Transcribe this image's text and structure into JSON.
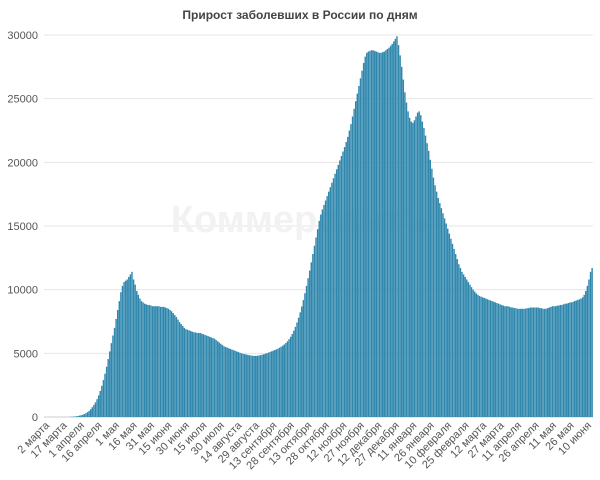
{
  "chart_data": {
    "type": "bar",
    "title": "Прирост заболевших в России по дням",
    "xlabel": "",
    "ylabel": "",
    "ylim": [
      0,
      30000
    ],
    "yticks": [
      0,
      5000,
      10000,
      15000,
      20000,
      25000,
      30000
    ],
    "grid": true,
    "legend": "none",
    "watermark": "Коммерсантъ",
    "bar_color": "#2f87ad",
    "x_tick_labels": [
      "2 марта",
      "17 марта",
      "1 апреля",
      "16 апреля",
      "1 мая",
      "16 мая",
      "31 мая",
      "15 июня",
      "30 июня",
      "15 июля",
      "30 июля",
      "14 августа",
      "29 августа",
      "13 сентября",
      "28 сентября",
      "13 октября",
      "28 октября",
      "12 ноября",
      "27 ноября",
      "12 декабря",
      "27 декабря",
      "11 января",
      "26 января",
      "10 февраля",
      "25 февраля",
      "12 марта",
      "27 марта",
      "11 апреля",
      "26 апреля",
      "11 мая",
      "26 мая",
      "10 июня"
    ],
    "series": [
      {
        "values": [
          0,
          0,
          0,
          0,
          0,
          0,
          0,
          0,
          0,
          0,
          0,
          0,
          0,
          0,
          0,
          0,
          10,
          20,
          30,
          40,
          60,
          80,
          110,
          140,
          180,
          230,
          300,
          380,
          480,
          610,
          770,
          950,
          1150,
          1400,
          1700,
          2050,
          2450,
          2900,
          3400,
          3950,
          4550,
          5150,
          5800,
          6400,
          7000,
          7700,
          8400,
          9100,
          9800,
          10300,
          10600,
          10700,
          10800,
          11000,
          11200,
          11400,
          10800,
          10400,
          9900,
          9600,
          9300,
          9100,
          9000,
          8900,
          8850,
          8800,
          8800,
          8750,
          8700,
          8700,
          8700,
          8700,
          8700,
          8650,
          8650,
          8650,
          8600,
          8550,
          8500,
          8400,
          8300,
          8150,
          8000,
          7850,
          7650,
          7450,
          7300,
          7150,
          7000,
          6900,
          6850,
          6800,
          6750,
          6700,
          6650,
          6650,
          6600,
          6600,
          6600,
          6550,
          6500,
          6450,
          6400,
          6350,
          6300,
          6250,
          6200,
          6150,
          6050,
          5950,
          5850,
          5750,
          5650,
          5550,
          5500,
          5450,
          5400,
          5350,
          5300,
          5250,
          5200,
          5150,
          5100,
          5050,
          5000,
          4970,
          4940,
          4910,
          4880,
          4850,
          4830,
          4810,
          4800,
          4800,
          4810,
          4830,
          4860,
          4890,
          4930,
          4970,
          5010,
          5060,
          5110,
          5160,
          5210,
          5260,
          5310,
          5370,
          5440,
          5520,
          5600,
          5700,
          5810,
          5950,
          6110,
          6300,
          6520,
          6780,
          7080,
          7420,
          7800,
          8220,
          8680,
          9180,
          9720,
          10300,
          10900,
          11500,
          12150,
          12800,
          13450,
          14100,
          14750,
          15400,
          15900,
          16300,
          16650,
          17000,
          17350,
          17700,
          18050,
          18400,
          18750,
          19100,
          19450,
          19800,
          20150,
          20500,
          20850,
          21200,
          21600,
          22000,
          22500,
          23000,
          23600,
          24200,
          24800,
          25400,
          26000,
          26600,
          27200,
          27800,
          28300,
          28600,
          28700,
          28750,
          28800,
          28800,
          28750,
          28700,
          28650,
          28600,
          28600,
          28650,
          28700,
          28800,
          28900,
          29000,
          29150,
          29300,
          29500,
          29700,
          29900,
          29200,
          28400,
          27500,
          26500,
          25500,
          24700,
          24000,
          23500,
          23200,
          23100,
          23300,
          23600,
          23900,
          24000,
          23700,
          23200,
          22700,
          22100,
          21500,
          20900,
          20200,
          19500,
          18800,
          18200,
          17700,
          17200,
          16800,
          16400,
          16000,
          15600,
          15200,
          14800,
          14400,
          14000,
          13600,
          13200,
          12800,
          12400,
          12000,
          11700,
          11400,
          11200,
          11000,
          10800,
          10600,
          10400,
          10200,
          10000,
          9850,
          9700,
          9600,
          9500,
          9450,
          9400,
          9350,
          9300,
          9250,
          9200,
          9150,
          9100,
          9050,
          9000,
          8950,
          8900,
          8850,
          8800,
          8750,
          8700,
          8700,
          8700,
          8650,
          8600,
          8600,
          8550,
          8550,
          8500,
          8500,
          8500,
          8500,
          8500,
          8500,
          8550,
          8550,
          8600,
          8600,
          8600,
          8600,
          8600,
          8600,
          8550,
          8550,
          8500,
          8500,
          8500,
          8550,
          8600,
          8650,
          8700,
          8700,
          8700,
          8750,
          8750,
          8800,
          8800,
          8850,
          8900,
          8900,
          8950,
          9000,
          9000,
          9050,
          9100,
          9150,
          9200,
          9250,
          9300,
          9400,
          9600,
          9900,
          10300,
          10800,
          11400,
          11700
        ]
      }
    ]
  }
}
